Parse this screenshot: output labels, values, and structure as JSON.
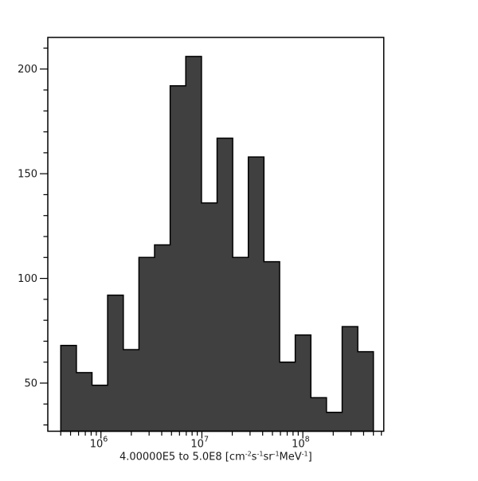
{
  "chart_data": {
    "type": "bar",
    "title": "",
    "xlabel_plain": "4.00000E5 to 5.0E8 [cm-2s-1sr-1MeV-1]",
    "xlabel_segments": [
      {
        "t": "4.00000E5 to 5.0E8 [cm"
      },
      {
        "t": "-2",
        "sup": true
      },
      {
        "t": "s"
      },
      {
        "t": "-1",
        "sup": true
      },
      {
        "t": "sr"
      },
      {
        "t": "-1",
        "sup": true
      },
      {
        "t": "MeV"
      },
      {
        "t": "-1",
        "sup": true
      },
      {
        "t": "]"
      }
    ],
    "ylabel": "",
    "x_scale": "log",
    "bin_start": 400000,
    "bin_end": 500000000,
    "n_bins": 20,
    "values": [
      68,
      55,
      49,
      92,
      66,
      110,
      116,
      192,
      206,
      136,
      167,
      110,
      158,
      108,
      60,
      73,
      43,
      36,
      77,
      65
    ],
    "ylim": [
      27,
      215.1
    ],
    "x_log_range": [
      5.4736,
      8.8016
    ],
    "y_major_ticks": [
      50,
      100,
      150,
      200
    ],
    "y_minor_from": 30,
    "y_minor_to": 210,
    "y_minor_step": 10,
    "x_major_ticks": [
      {
        "value": 1000000,
        "base": "10",
        "exp": "6"
      },
      {
        "value": 10000000,
        "base": "10",
        "exp": "7"
      },
      {
        "value": 100000000,
        "base": "10",
        "exp": "8"
      }
    ],
    "grid": false,
    "legend": "none",
    "bar_color": "#404040",
    "edge_color": "#000000",
    "axis_color": "#000000",
    "text_color": "#1a1a1a"
  }
}
